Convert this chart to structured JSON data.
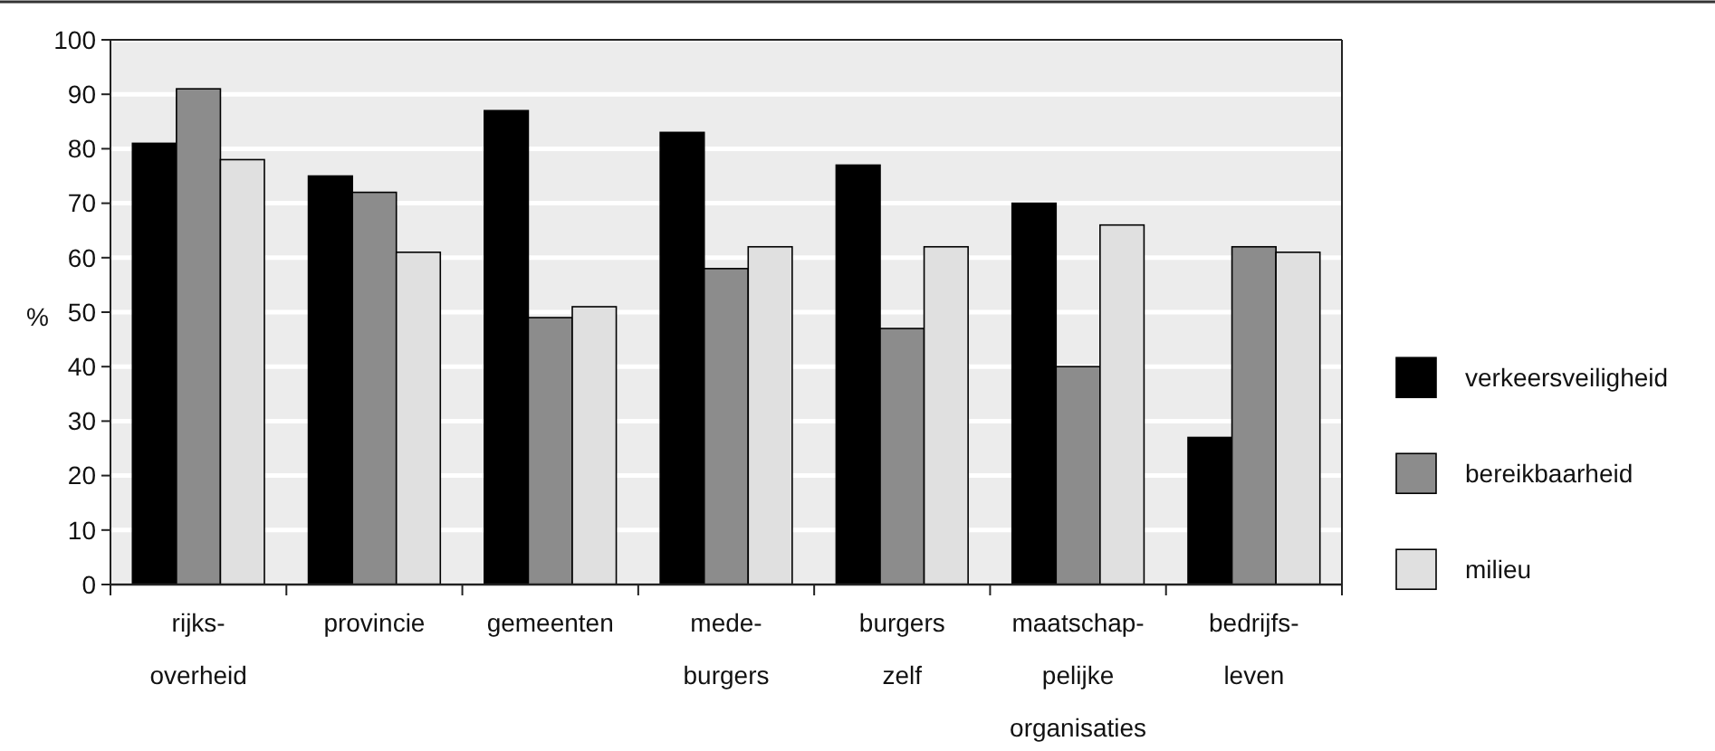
{
  "chart_data": {
    "type": "bar",
    "ylabel": "%",
    "categories": [
      "rijks-\noverheid",
      "provincie",
      "gemeenten",
      "mede-\nburgers",
      "burgers\nzelf",
      "maatschap-\npelijke\norganisaties",
      "bedrijfs-\nleven"
    ],
    "series": [
      {
        "name": "verkeersveiligheid",
        "color": "#000000",
        "values": [
          81,
          75,
          87,
          83,
          77,
          70,
          27
        ]
      },
      {
        "name": "bereikbaarheid",
        "color": "#8c8c8c",
        "values": [
          91,
          72,
          49,
          58,
          47,
          40,
          62
        ]
      },
      {
        "name": "milieu",
        "color": "#e0e0e0",
        "values": [
          78,
          61,
          51,
          62,
          62,
          66,
          61
        ]
      }
    ],
    "ylim": [
      0,
      100
    ],
    "yticks": [
      0,
      10,
      20,
      30,
      40,
      50,
      60,
      70,
      80,
      90,
      100
    ],
    "grid": "y",
    "legend": "right"
  }
}
